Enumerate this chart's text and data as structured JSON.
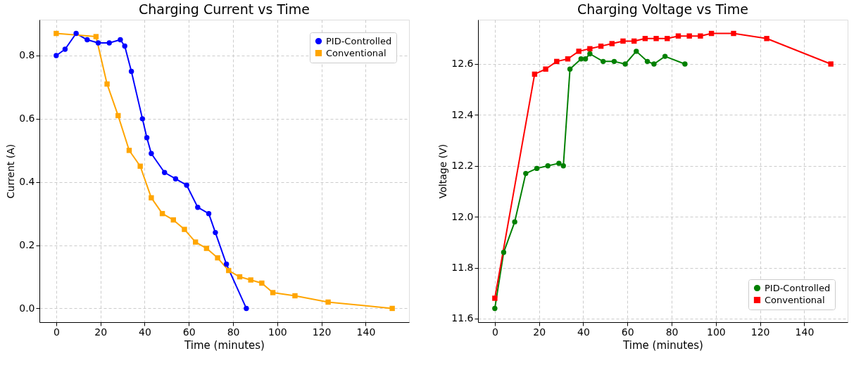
{
  "chart_data": [
    {
      "type": "line",
      "title": "Charging Current vs Time",
      "xlabel": "Time (minutes)",
      "ylabel": "Current (A)",
      "xlim": [
        -7.6,
        159.6
      ],
      "xticks": [
        0,
        20,
        40,
        60,
        80,
        100,
        120,
        140
      ],
      "ylim": [
        -0.0435,
        0.9135
      ],
      "yticks": [
        {
          "value": 0,
          "label": "0.0"
        },
        0.2,
        0.4,
        0.6,
        0.8
      ],
      "grid": true,
      "legend": "top right",
      "line_style": "solid",
      "series": [
        {
          "name": "PID-Controlled",
          "color": "#0000ff",
          "marker": "circle",
          "x": [
            0,
            4,
            9,
            14,
            19,
            24,
            29,
            31,
            34,
            39,
            41,
            43,
            49,
            54,
            59,
            64,
            69,
            72,
            77,
            86
          ],
          "values": [
            0.8,
            0.82,
            0.87,
            0.85,
            0.84,
            0.84,
            0.85,
            0.83,
            0.75,
            0.6,
            0.54,
            0.49,
            0.43,
            0.41,
            0.39,
            0.32,
            0.3,
            0.24,
            0.14,
            0.0
          ]
        },
        {
          "name": "Conventional",
          "color": "#ffa500",
          "marker": "square",
          "x": [
            0,
            18,
            23,
            28,
            33,
            38,
            43,
            48,
            53,
            58,
            63,
            68,
            73,
            78,
            83,
            88,
            93,
            98,
            108,
            123,
            152
          ],
          "values": [
            0.87,
            0.86,
            0.71,
            0.61,
            0.5,
            0.45,
            0.35,
            0.3,
            0.28,
            0.25,
            0.21,
            0.19,
            0.16,
            0.12,
            0.1,
            0.09,
            0.08,
            0.05,
            0.04,
            0.02,
            0.0
          ]
        }
      ]
    },
    {
      "type": "line",
      "title": "Charging Voltage vs Time",
      "xlabel": "Time (minutes)",
      "ylabel": "Voltage (V)",
      "xlim": [
        -7.6,
        159.6
      ],
      "xticks": [
        0,
        20,
        40,
        60,
        80,
        100,
        120,
        140
      ],
      "ylim": [
        11.586,
        12.774
      ],
      "yticks": [
        11.6,
        11.8,
        {
          "value": 12.0,
          "label": "12.0"
        },
        12.2,
        12.4,
        12.6
      ],
      "grid": true,
      "legend": "bottom right",
      "line_style": "solid",
      "series": [
        {
          "name": "PID-Controlled",
          "color": "#008000",
          "marker": "circle",
          "x": [
            0,
            4,
            9,
            14,
            19,
            24,
            29,
            31,
            34,
            39,
            41,
            43,
            49,
            54,
            59,
            64,
            69,
            72,
            77,
            86
          ],
          "values": [
            11.64,
            11.86,
            11.98,
            12.17,
            12.19,
            12.2,
            12.21,
            12.2,
            12.58,
            12.62,
            12.62,
            12.64,
            12.61,
            12.61,
            12.6,
            12.65,
            12.61,
            12.6,
            12.63,
            12.6
          ]
        },
        {
          "name": "Conventional",
          "color": "#ff0000",
          "marker": "square",
          "x": [
            0,
            18,
            23,
            28,
            33,
            38,
            43,
            48,
            53,
            58,
            63,
            68,
            73,
            78,
            83,
            88,
            93,
            98,
            108,
            123,
            152
          ],
          "values": [
            11.68,
            12.56,
            12.58,
            12.61,
            12.62,
            12.65,
            12.66,
            12.67,
            12.68,
            12.69,
            12.69,
            12.7,
            12.7,
            12.7,
            12.71,
            12.71,
            12.71,
            12.72,
            12.72,
            12.7,
            12.6
          ]
        }
      ]
    }
  ]
}
